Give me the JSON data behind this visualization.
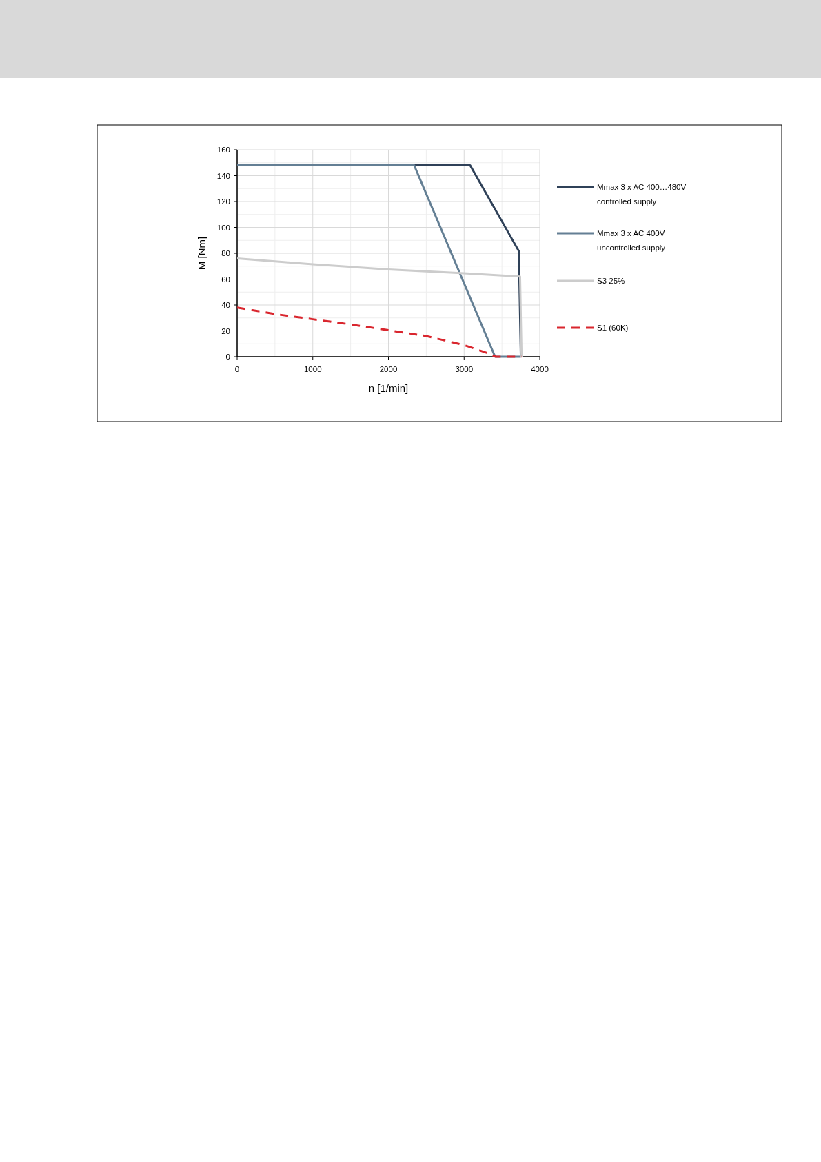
{
  "chart_data": {
    "type": "line",
    "xlabel": "n [1/min]",
    "ylabel": "M [Nm]",
    "xlim": [
      0,
      4000
    ],
    "xticks": [
      0,
      1000,
      2000,
      3000,
      4000
    ],
    "ylim": [
      0,
      160
    ],
    "yticks": [
      0,
      20,
      40,
      60,
      80,
      100,
      120,
      140,
      160
    ],
    "grid": true,
    "legend": "right",
    "series": [
      {
        "name": "Mmax 3 x AC 400…480V\ncontrolled supply",
        "color": "#2f4158",
        "line_style": "solid",
        "x": [
          0,
          3080,
          3730,
          3730,
          3750
        ],
        "values": [
          148,
          148,
          81,
          62,
          0
        ]
      },
      {
        "name": "Mmax 3 x AC 400V\nuncontrolled supply",
        "color": "#647f94",
        "line_style": "solid",
        "x": [
          0,
          2340,
          3410,
          3750
        ],
        "values": [
          148,
          148,
          0,
          0
        ]
      },
      {
        "name": "S3 25%",
        "color": "#cccccc",
        "line_style": "solid",
        "x": [
          0,
          1000,
          2000,
          3000,
          3740,
          3760
        ],
        "values": [
          76,
          71.5,
          67.5,
          64.5,
          62,
          0
        ]
      },
      {
        "name": "S1 (60K)",
        "color": "#d9262e",
        "line_style": "dashed",
        "x": [
          0,
          500,
          1000,
          1500,
          2000,
          2500,
          3000,
          3300,
          3420,
          3760
        ],
        "values": [
          38,
          33,
          29,
          25,
          20.5,
          16,
          9,
          3,
          0,
          0
        ]
      }
    ]
  }
}
